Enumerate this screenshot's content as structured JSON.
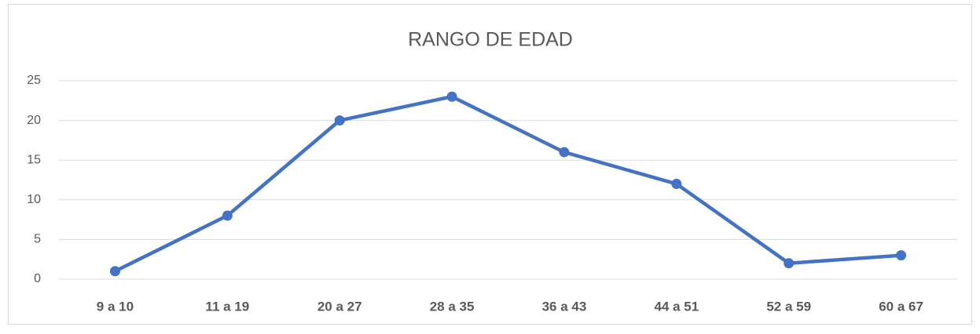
{
  "chart_data": {
    "type": "line",
    "title": "RANGO DE EDAD",
    "categories": [
      "9 a 10",
      "11 a 19",
      "20 a 27",
      "28 a 35",
      "36 a 43",
      "44 a 51",
      "52 a 59",
      "60 a 67"
    ],
    "series": [
      {
        "name": "RANGO DE EDAD",
        "color": "#4472c4",
        "values": [
          1,
          8,
          20,
          23,
          16,
          12,
          2,
          3
        ]
      }
    ],
    "ylim": [
      0,
      25
    ],
    "yticks": [
      0,
      5,
      10,
      15,
      20,
      25
    ],
    "grid": true
  }
}
